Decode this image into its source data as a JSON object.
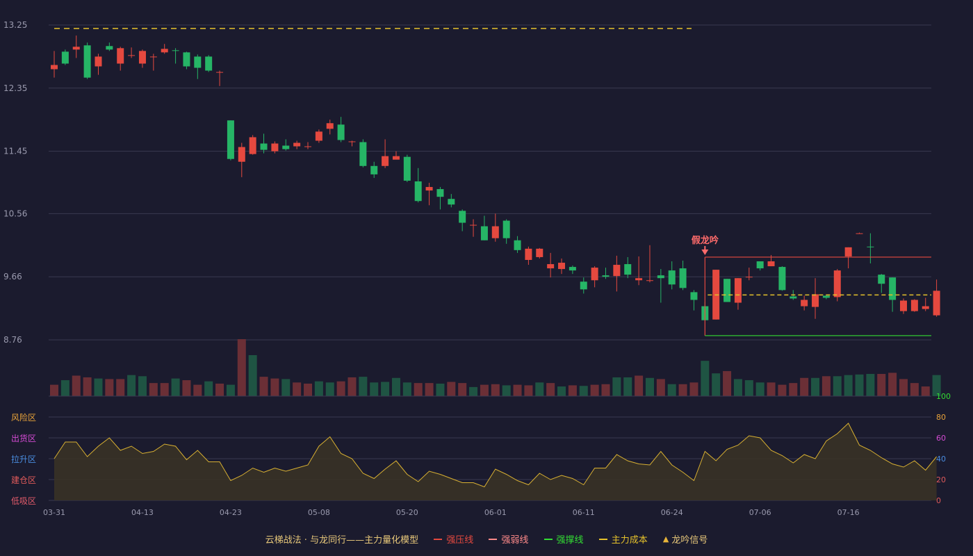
{
  "chart_data": {
    "type": "candlestick",
    "title": "",
    "price_axis": {
      "ticks": [
        "13.25",
        "12.35",
        "11.45",
        "10.56",
        "9.66",
        "8.76"
      ],
      "range": [
        8.76,
        13.25
      ]
    },
    "x_ticks": [
      {
        "index": 0,
        "label": "03-31"
      },
      {
        "index": 8,
        "label": "04-13"
      },
      {
        "index": 16,
        "label": "04-23"
      },
      {
        "index": 24,
        "label": "05-08"
      },
      {
        "index": 32,
        "label": "05-20"
      },
      {
        "index": 40,
        "label": "06-01"
      },
      {
        "index": 48,
        "label": "06-11"
      },
      {
        "index": 56,
        "label": "06-24"
      },
      {
        "index": 64,
        "label": "07-06"
      },
      {
        "index": 72,
        "label": "07-16"
      }
    ],
    "candles": [
      [
        12.62,
        12.68,
        12.5,
        12.88
      ],
      [
        12.87,
        12.7,
        12.68,
        12.9
      ],
      [
        12.9,
        12.94,
        12.78,
        13.1
      ],
      [
        12.96,
        12.5,
        12.48,
        13.0
      ],
      [
        12.66,
        12.8,
        12.54,
        12.84
      ],
      [
        12.95,
        12.9,
        12.88,
        13.0
      ],
      [
        12.7,
        12.92,
        12.6,
        12.94
      ],
      [
        12.82,
        12.82,
        12.78,
        12.93
      ],
      [
        12.7,
        12.88,
        12.64,
        12.9
      ],
      [
        12.8,
        12.8,
        12.6,
        12.84
      ],
      [
        12.86,
        12.91,
        12.84,
        12.98
      ],
      [
        12.89,
        12.88,
        12.7,
        12.92
      ],
      [
        12.86,
        12.66,
        12.62,
        12.87
      ],
      [
        12.8,
        12.64,
        12.48,
        12.83
      ],
      [
        12.8,
        12.6,
        12.58,
        12.82
      ],
      [
        12.58,
        12.58,
        12.38,
        12.6
      ],
      [
        11.89,
        11.34,
        11.32,
        11.89
      ],
      [
        11.3,
        11.51,
        11.08,
        11.57
      ],
      [
        11.41,
        11.65,
        11.4,
        11.68
      ],
      [
        11.56,
        11.47,
        11.42,
        11.7
      ],
      [
        11.45,
        11.56,
        11.42,
        11.59
      ],
      [
        11.53,
        11.48,
        11.46,
        11.62
      ],
      [
        11.52,
        11.57,
        11.48,
        11.6
      ],
      [
        11.52,
        11.52,
        11.48,
        11.58
      ],
      [
        11.6,
        11.73,
        11.57,
        11.76
      ],
      [
        11.77,
        11.85,
        11.69,
        11.9
      ],
      [
        11.83,
        11.61,
        11.58,
        11.94
      ],
      [
        11.58,
        11.59,
        11.52,
        11.6
      ],
      [
        11.58,
        11.24,
        11.22,
        11.62
      ],
      [
        11.24,
        11.12,
        11.07,
        11.3
      ],
      [
        11.24,
        11.38,
        11.21,
        11.62
      ],
      [
        11.33,
        11.38,
        11.34,
        11.45
      ],
      [
        11.37,
        11.03,
        11.01,
        11.4
      ],
      [
        11.02,
        10.74,
        10.72,
        11.21
      ],
      [
        10.89,
        10.94,
        10.68,
        11.0
      ],
      [
        10.91,
        10.8,
        10.62,
        10.94
      ],
      [
        10.77,
        10.69,
        10.65,
        10.84
      ],
      [
        10.6,
        10.43,
        10.31,
        10.62
      ],
      [
        10.4,
        10.4,
        10.23,
        10.48
      ],
      [
        10.38,
        10.18,
        10.18,
        10.53
      ],
      [
        10.21,
        10.38,
        10.16,
        10.56
      ],
      [
        10.46,
        10.21,
        10.13,
        10.48
      ],
      [
        10.18,
        10.04,
        10.0,
        10.24
      ],
      [
        9.9,
        10.06,
        9.83,
        10.09
      ],
      [
        9.94,
        10.06,
        9.92,
        10.07
      ],
      [
        9.78,
        9.84,
        9.65,
        10.0
      ],
      [
        9.77,
        9.86,
        9.7,
        9.92
      ],
      [
        9.8,
        9.75,
        9.7,
        9.82
      ],
      [
        9.59,
        9.48,
        9.42,
        9.65
      ],
      [
        9.61,
        9.79,
        9.51,
        9.81
      ],
      [
        9.68,
        9.66,
        9.63,
        9.79
      ],
      [
        9.67,
        9.83,
        9.45,
        9.96
      ],
      [
        9.84,
        9.69,
        9.64,
        9.94
      ],
      [
        9.61,
        9.64,
        9.54,
        9.95
      ],
      [
        9.61,
        9.61,
        9.58,
        10.11
      ],
      [
        9.68,
        9.64,
        9.29,
        9.77
      ],
      [
        9.75,
        9.55,
        9.48,
        9.88
      ],
      [
        9.78,
        9.5,
        9.47,
        9.89
      ],
      [
        9.44,
        9.33,
        9.18,
        9.47
      ],
      [
        9.24,
        9.04,
        9.04,
        9.3
      ],
      [
        9.05,
        9.76,
        9.05,
        9.76
      ],
      [
        9.63,
        9.3,
        9.3,
        9.63
      ],
      [
        9.29,
        9.64,
        9.19,
        9.64
      ],
      [
        9.65,
        9.66,
        9.61,
        9.79
      ],
      [
        9.88,
        9.78,
        9.75,
        9.88
      ],
      [
        9.81,
        9.88,
        9.81,
        9.97
      ],
      [
        9.8,
        9.47,
        9.46,
        9.81
      ],
      [
        9.38,
        9.35,
        9.33,
        9.47
      ],
      [
        9.24,
        9.33,
        9.18,
        9.39
      ],
      [
        9.23,
        9.41,
        9.06,
        9.64
      ],
      [
        9.39,
        9.36,
        9.34,
        9.4
      ],
      [
        9.37,
        9.75,
        9.31,
        9.77
      ],
      [
        9.95,
        10.08,
        9.78,
        10.08
      ],
      [
        10.28,
        10.28,
        10.28,
        10.29
      ],
      [
        10.09,
        10.08,
        9.85,
        10.28
      ],
      [
        9.69,
        9.56,
        9.43,
        9.7
      ],
      [
        9.65,
        9.33,
        9.16,
        9.65
      ],
      [
        9.17,
        9.32,
        9.13,
        9.35
      ],
      [
        9.17,
        9.33,
        9.16,
        9.34
      ],
      [
        9.2,
        9.24,
        9.17,
        9.36
      ],
      [
        9.11,
        9.46,
        9.09,
        9.62
      ]
    ],
    "volume": [
      20,
      28,
      36,
      33,
      31,
      30,
      30,
      37,
      35,
      23,
      23,
      31,
      28,
      20,
      26,
      22,
      20,
      100,
      72,
      34,
      31,
      30,
      24,
      22,
      26,
      24,
      26,
      33,
      34,
      24,
      25,
      32,
      24,
      23,
      23,
      22,
      25,
      23,
      16,
      20,
      21,
      19,
      20,
      19,
      24,
      23,
      17,
      19,
      18,
      20,
      21,
      33,
      33,
      36,
      32,
      30,
      21,
      21,
      24,
      62,
      40,
      44,
      30,
      28,
      24,
      24,
      20,
      23,
      32,
      32,
      35,
      35,
      37,
      38,
      39,
      39,
      41,
      30,
      23,
      17,
      37
    ],
    "volume_colors": [
      "r",
      "g",
      "r",
      "r",
      "g",
      "r",
      "r",
      "g",
      "g",
      "r",
      "r",
      "g",
      "r",
      "r",
      "g",
      "r",
      "g",
      "r",
      "g",
      "r",
      "r",
      "g",
      "r",
      "r",
      "g",
      "g",
      "r",
      "r",
      "g",
      "g",
      "g",
      "g",
      "g",
      "r",
      "r",
      "g",
      "r",
      "r",
      "g",
      "r",
      "r",
      "g",
      "r",
      "r",
      "g",
      "r",
      "g",
      "r",
      "g",
      "r",
      "r",
      "g",
      "g",
      "r",
      "g",
      "r",
      "g",
      "r",
      "r",
      "g",
      "g",
      "r",
      "g",
      "g",
      "g",
      "r",
      "r",
      "r",
      "r",
      "g",
      "r",
      "g",
      "g",
      "g",
      "g",
      "r",
      "r",
      "r",
      "r",
      "r",
      "g"
    ],
    "oscillator": [
      40,
      56,
      56,
      42,
      52,
      60,
      48,
      52,
      45,
      47,
      54,
      52,
      39,
      48,
      37,
      37,
      19,
      24,
      31,
      27,
      31,
      28,
      31,
      34,
      52,
      61,
      45,
      40,
      26,
      21,
      30,
      38,
      25,
      18,
      28,
      25,
      21,
      17,
      17,
      13,
      30,
      25,
      19,
      15,
      26,
      20,
      24,
      21,
      15,
      31,
      31,
      44,
      38,
      35,
      34,
      47,
      34,
      27,
      19,
      47,
      38,
      49,
      53,
      62,
      60,
      48,
      43,
      36,
      44,
      40,
      57,
      64,
      74,
      53,
      48,
      41,
      35,
      32,
      38,
      29,
      42
    ],
    "osc_axis": {
      "range": [
        0,
        100
      ],
      "ticks": [
        "100",
        "80",
        "60",
        "40",
        "20",
        "0"
      ]
    },
    "zones": [
      "风险区",
      "出货区",
      "拉升区",
      "建仓区",
      "低吸区"
    ],
    "zone_colors": [
      "#e8a33a",
      "#d44bd4",
      "#4a8de0",
      "#e05a5a",
      "#e05a6a"
    ],
    "osc_tick_colors": [
      "#33dd33",
      "#e8a33a",
      "#d44bd4",
      "#4a8de0",
      "#e05a5a",
      "#e05a5a"
    ],
    "cost_line_top": 13.2,
    "signal": {
      "label": "假龙吟",
      "index": 59
    },
    "box": {
      "start": 59,
      "end": 80,
      "top": 9.94,
      "bottom": 8.82,
      "mid": 9.4
    },
    "colors": {
      "up": "#e5493f",
      "down": "#26b566",
      "vol_up": "#6b2f36",
      "vol_down": "#1f5443",
      "cost": "#e6c22b",
      "resistance": "#e5493f",
      "support": "#33dd33",
      "signal": "#ff6b6b",
      "osc_line": "#d8b032",
      "osc_fill": "#3a3324",
      "grid": "#3a3a50",
      "axis_text": "#9a9aae"
    }
  },
  "legend": {
    "model": "云梯战法 · 与龙同行——主力量化模型",
    "items": [
      {
        "label": "强压线",
        "color": "#e5493f",
        "style": "solid"
      },
      {
        "label": "强弱线",
        "color": "#ff8a8a",
        "style": "dashed"
      },
      {
        "label": "强撑线",
        "color": "#33dd33",
        "style": "solid"
      },
      {
        "label": "主力成本",
        "color": "#e6c22b",
        "style": "dashed"
      }
    ],
    "signal_icon": "▲",
    "signal_label": "龙吟信号",
    "signal_color": "#e8b53a"
  }
}
